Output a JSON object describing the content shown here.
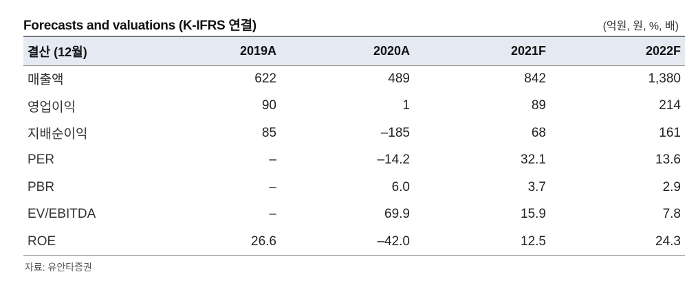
{
  "title": "Forecasts and valuations (K-IFRS 연결)",
  "unit": "(억원, 원, %, 배)",
  "table": {
    "header": [
      "결산 (12월)",
      "2019A",
      "2020A",
      "2021F",
      "2022F"
    ],
    "rows": [
      {
        "label": "매출액",
        "values": [
          "622",
          "489",
          "842",
          "1,380"
        ]
      },
      {
        "label": "영업이익",
        "values": [
          "90",
          "1",
          "89",
          "214"
        ]
      },
      {
        "label": "지배순이익",
        "values": [
          "85",
          "–185",
          "68",
          "161"
        ]
      },
      {
        "label": "PER",
        "values": [
          "–",
          "–14.2",
          "32.1",
          "13.6"
        ]
      },
      {
        "label": "PBR",
        "values": [
          "–",
          "6.0",
          "3.7",
          "2.9"
        ]
      },
      {
        "label": "EV/EBITDA",
        "values": [
          "–",
          "69.9",
          "15.9",
          "7.8"
        ]
      },
      {
        "label": "ROE",
        "values": [
          "26.6",
          "–42.0",
          "12.5",
          "24.3"
        ]
      }
    ]
  },
  "source": "자료: 유안타증권"
}
